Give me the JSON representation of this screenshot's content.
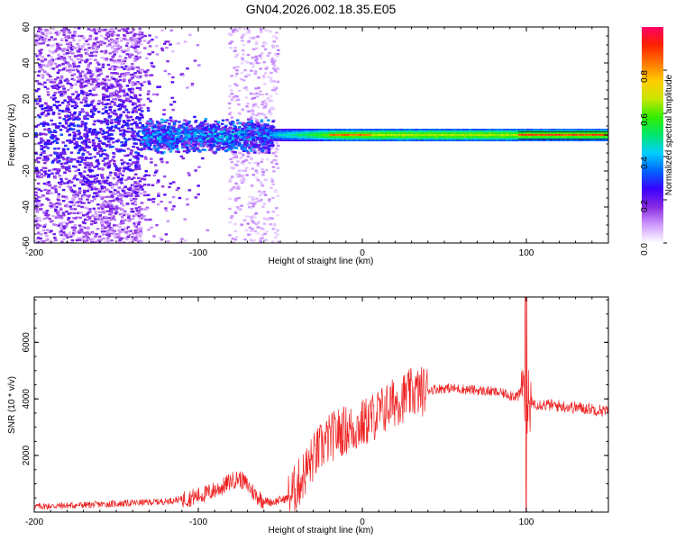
{
  "figure": {
    "title": "GN04.2026.002.18.35.E05"
  },
  "chart_data": [
    {
      "type": "heatmap",
      "xlabel": "Height of straight line (km)",
      "ylabel": "Frequency (Hz)",
      "xlim": [
        -200,
        150
      ],
      "ylim": [
        -60,
        60
      ],
      "x_ticks": [
        -200,
        -100,
        0,
        100
      ],
      "y_ticks": [
        -60,
        -40,
        -20,
        0,
        20,
        40,
        60
      ],
      "colorbar": {
        "label": "Normalized spectral amplitude",
        "range": [
          0,
          1
        ],
        "ticks": [
          "0.0",
          "0.2",
          "0.4",
          "0.6",
          "0.8"
        ],
        "colormap": [
          "#ffffff",
          "#cf9bff",
          "#8a2be2",
          "#3a00ff",
          "#0066ff",
          "#00cfff",
          "#00e66e",
          "#33ee00",
          "#c8e600",
          "#ffcc00",
          "#ff7700",
          "#ff2200",
          "#ff0066"
        ]
      },
      "structure": [
        {
          "x_range": [
            -200,
            -135
          ],
          "freq_range": [
            -60,
            60
          ],
          "amplitude": 0.15,
          "description_level": "scattered noise"
        },
        {
          "x_range": [
            -135,
            -55
          ],
          "freq_range": [
            -10,
            10
          ],
          "amplitude": 0.3
        },
        {
          "x_range": [
            -55,
            150
          ],
          "freq_range": [
            -3,
            3
          ],
          "amplitude": 0.55
        },
        {
          "x_range": [
            -20,
            5
          ],
          "freq_range": [
            -1,
            1
          ],
          "amplitude": 0.9
        },
        {
          "x_range": [
            95,
            150
          ],
          "freq_range": [
            -1,
            1
          ],
          "amplitude": 0.95
        }
      ]
    },
    {
      "type": "line",
      "xlabel": "Height of straight line (km)",
      "ylabel": "SNR (10 * v/v)",
      "xlim": [
        -200,
        150
      ],
      "ylim": [
        0,
        7600
      ],
      "x_ticks": [
        -200,
        -100,
        0,
        100
      ],
      "y_ticks": [
        2000,
        4000,
        6000
      ],
      "series": [
        {
          "color": "#ee2222",
          "x": [
            -200,
            -180,
            -160,
            -140,
            -120,
            -105,
            -95,
            -85,
            -80,
            -75,
            -70,
            -65,
            -60,
            -55,
            -45,
            -40,
            -35,
            -30,
            -25,
            -20,
            -15,
            -10,
            -5,
            0,
            10,
            20,
            30,
            40,
            50,
            60,
            70,
            80,
            90,
            95,
            98,
            100,
            102,
            105,
            110,
            120,
            130,
            140,
            150
          ],
          "y": [
            200,
            230,
            270,
            320,
            380,
            500,
            650,
            900,
            1100,
            1200,
            950,
            600,
            400,
            350,
            500,
            900,
            1400,
            1900,
            2300,
            2600,
            2800,
            2900,
            2950,
            3100,
            3500,
            3900,
            4200,
            4320,
            4380,
            4350,
            4300,
            4250,
            4150,
            4100,
            4300,
            4000,
            3900,
            3850,
            3800,
            3750,
            3700,
            3650,
            3550
          ]
        }
      ]
    }
  ]
}
